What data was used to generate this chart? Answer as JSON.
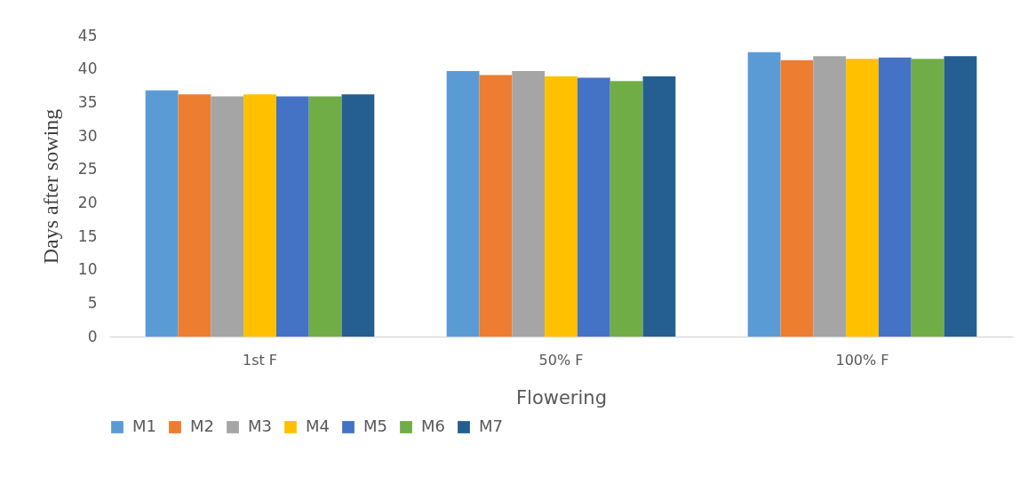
{
  "chart_data": {
    "type": "bar",
    "xlabel": "Flowering",
    "ylabel": "Days after sowing",
    "categories": [
      "1st F",
      "50% F",
      "100% F"
    ],
    "series": [
      {
        "name": "M1",
        "color": "#5b9bd5",
        "values": [
          36.8,
          39.7,
          42.5
        ]
      },
      {
        "name": "M2",
        "color": "#ed7d31",
        "values": [
          36.2,
          39.1,
          41.3
        ]
      },
      {
        "name": "M3",
        "color": "#a5a5a5",
        "values": [
          35.9,
          39.7,
          41.9
        ]
      },
      {
        "name": "M4",
        "color": "#ffc000",
        "values": [
          36.2,
          38.9,
          41.5
        ]
      },
      {
        "name": "M5",
        "color": "#4472c4",
        "values": [
          35.9,
          38.7,
          41.7
        ]
      },
      {
        "name": "M6",
        "color": "#70ad47",
        "values": [
          35.9,
          38.2,
          41.5
        ]
      },
      {
        "name": "M7",
        "color": "#255e91",
        "values": [
          36.2,
          38.9,
          41.9
        ]
      }
    ],
    "ylim": [
      0,
      45
    ],
    "yticks": [
      0,
      5,
      10,
      15,
      20,
      25,
      30,
      35,
      40,
      45
    ],
    "grid": false,
    "legend": "bottom"
  }
}
